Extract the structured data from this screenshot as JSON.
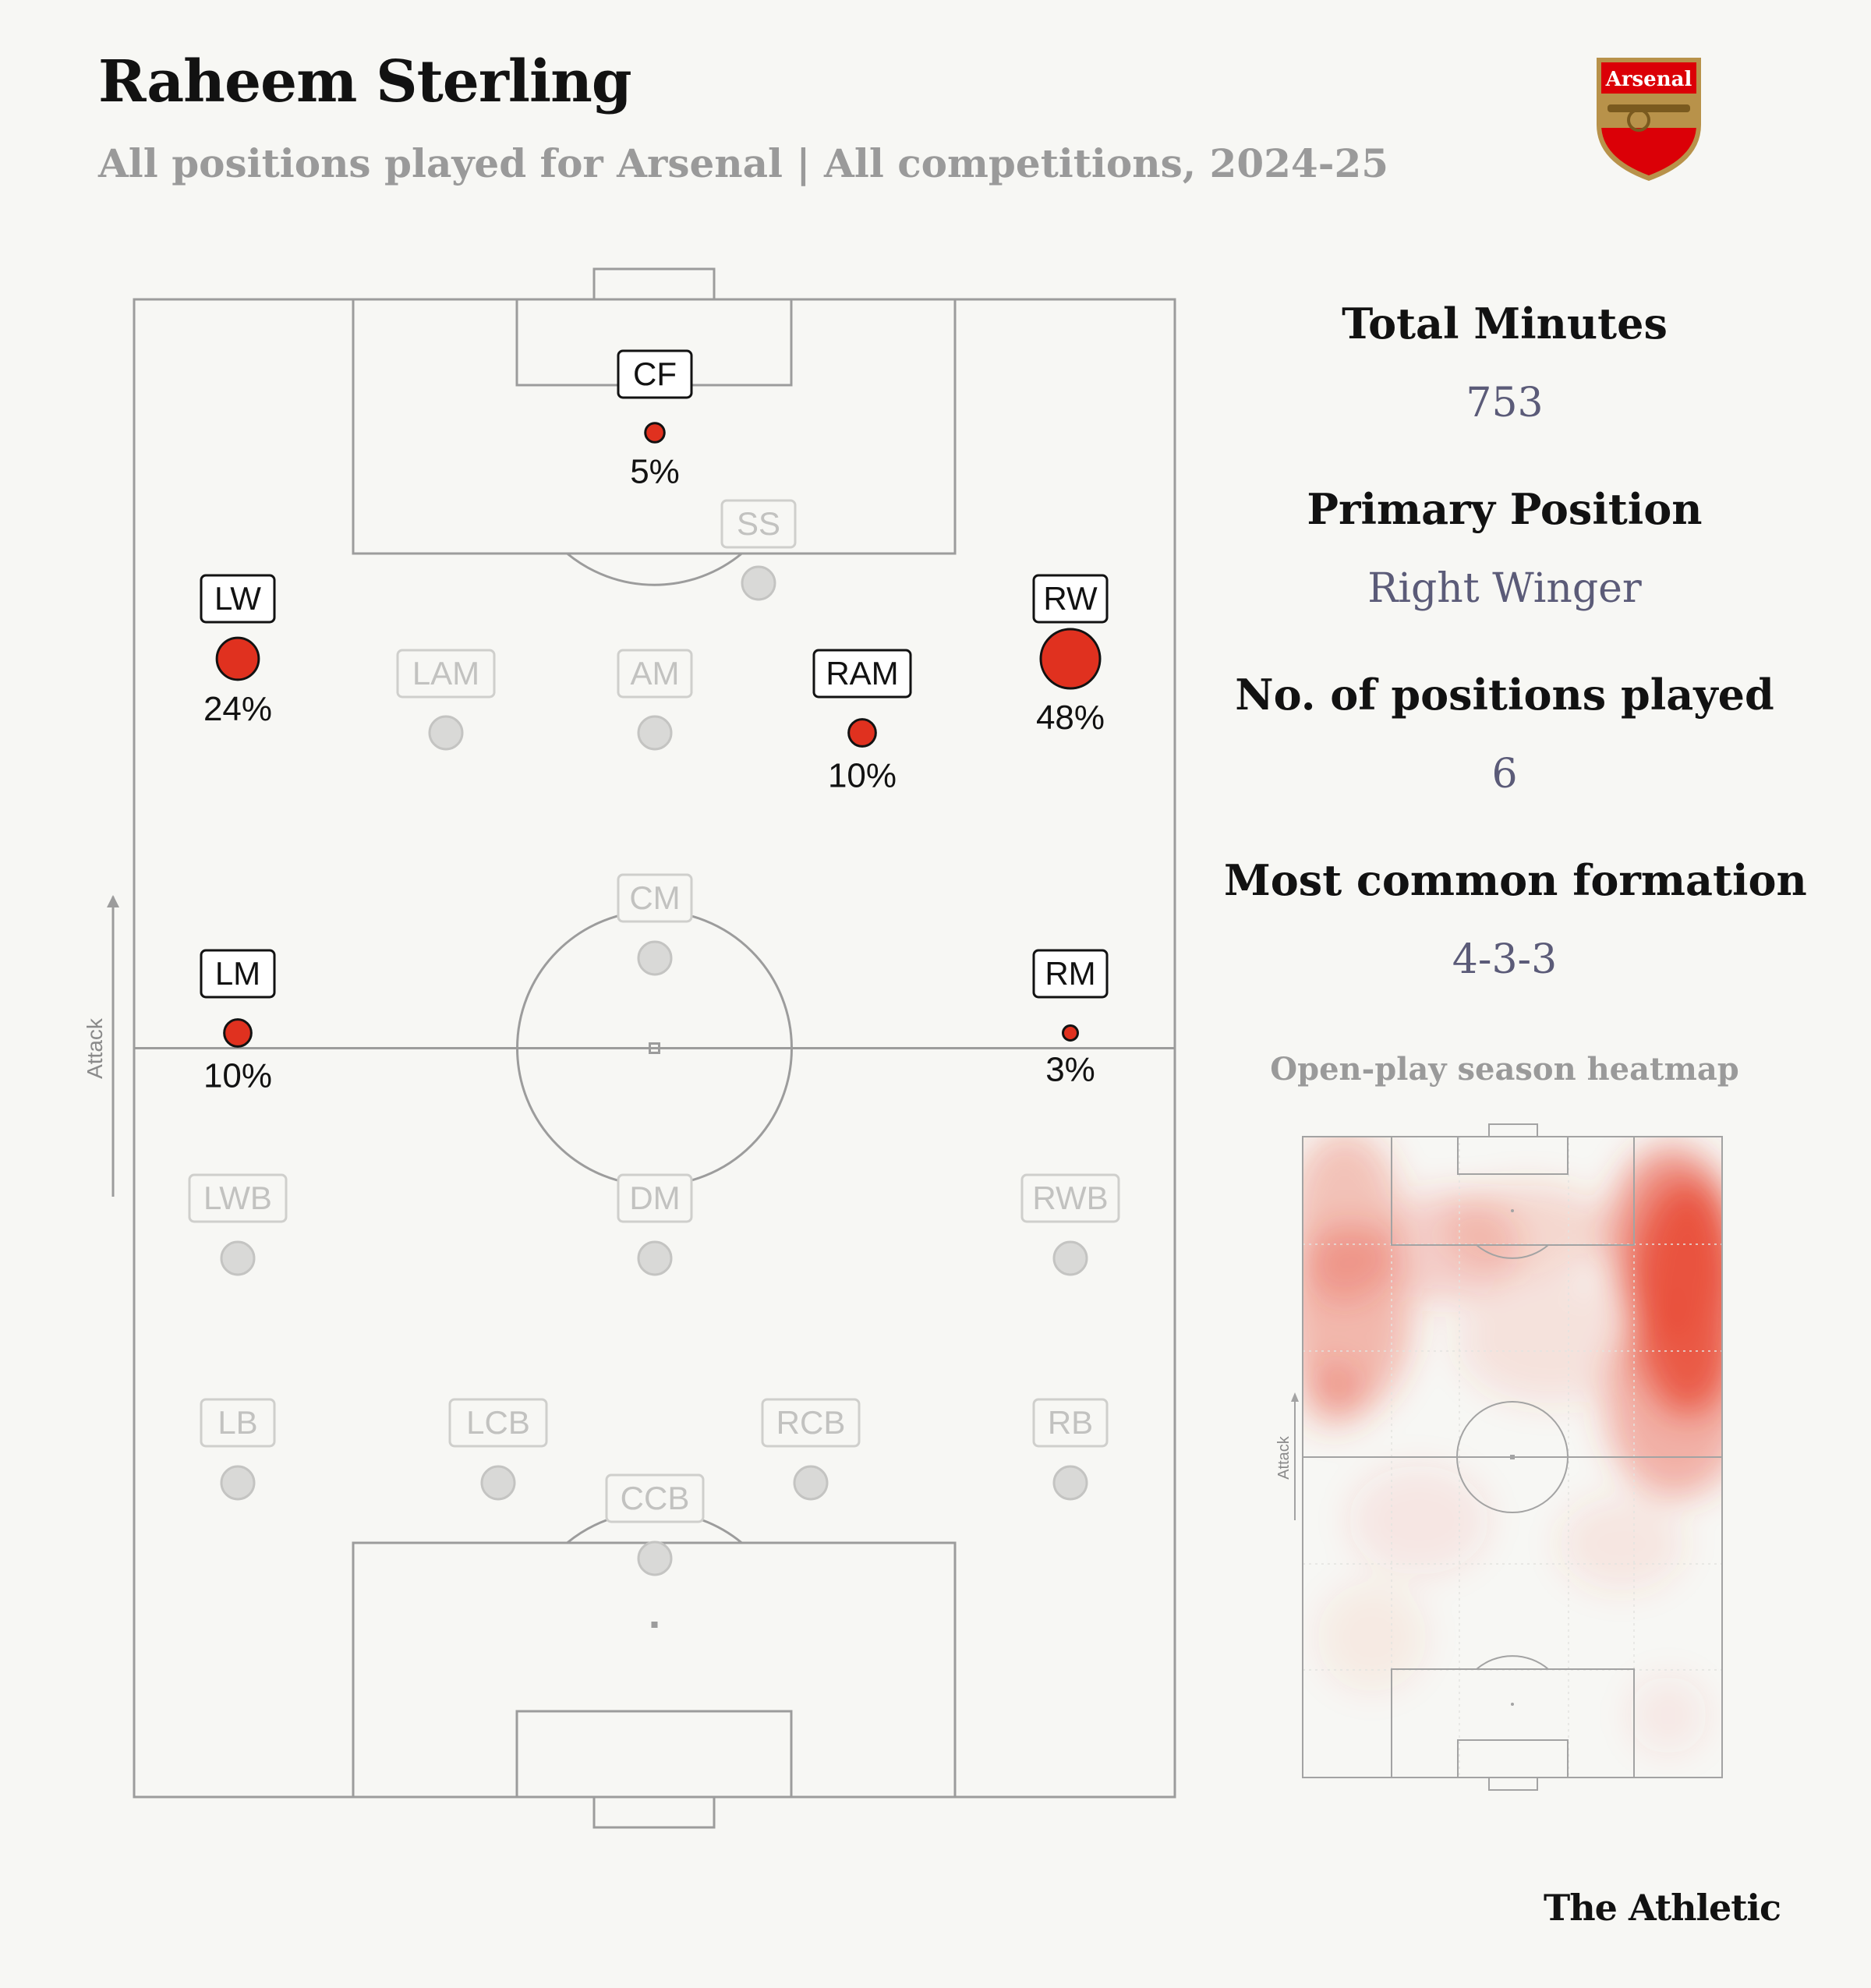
{
  "header": {
    "title": "Raheem Sterling",
    "subtitle": "All positions played for Arsenal | All competitions, 2024-25",
    "crest_text": "Arsenal"
  },
  "chart_data": [
    {
      "type": "scatter",
      "description_role": "position usage on a vertical football pitch",
      "axis_label": "Attack",
      "positions_played": [
        {
          "label": "CF",
          "pct": 5,
          "value_label": "5%"
        },
        {
          "label": "LW",
          "pct": 24,
          "value_label": "24%"
        },
        {
          "label": "RW",
          "pct": 48,
          "value_label": "48%"
        },
        {
          "label": "RAM",
          "pct": 10,
          "value_label": "10%"
        },
        {
          "label": "LM",
          "pct": 10,
          "value_label": "10%"
        },
        {
          "label": "RM",
          "pct": 3,
          "value_label": "3%"
        }
      ],
      "positions_not_played": [
        "SS",
        "LAM",
        "AM",
        "CM",
        "LWB",
        "DM",
        "RWB",
        "LB",
        "LCB",
        "RCB",
        "RB",
        "CCB"
      ]
    },
    {
      "type": "heatmap",
      "title": "Open-play season heatmap",
      "axis_label": "Attack",
      "hotspots": [
        {
          "area": "right flank, attacking third",
          "intensity": 1.0
        },
        {
          "area": "right flank, middle third",
          "intensity": 0.55
        },
        {
          "area": "left flank, attacking third",
          "intensity": 0.6
        },
        {
          "area": "top of penalty area",
          "intensity": 0.3
        }
      ]
    }
  ],
  "stats": [
    {
      "label": "Total Minutes",
      "value": "753"
    },
    {
      "label": "Primary Position",
      "value": "Right Winger"
    },
    {
      "label": "No. of positions played",
      "value": "6"
    },
    {
      "label": "Most common formation",
      "value": "4-3-3"
    }
  ],
  "footer": {
    "brand": "The Athletic"
  },
  "colors": {
    "background": "#f7f7f4",
    "marker_active": "#e0311f",
    "marker_inactive": "#d9d9d7",
    "pitch_line": "#9c9c9c",
    "stat_value": "#5b5b78",
    "muted_text": "#9a9a9a"
  }
}
